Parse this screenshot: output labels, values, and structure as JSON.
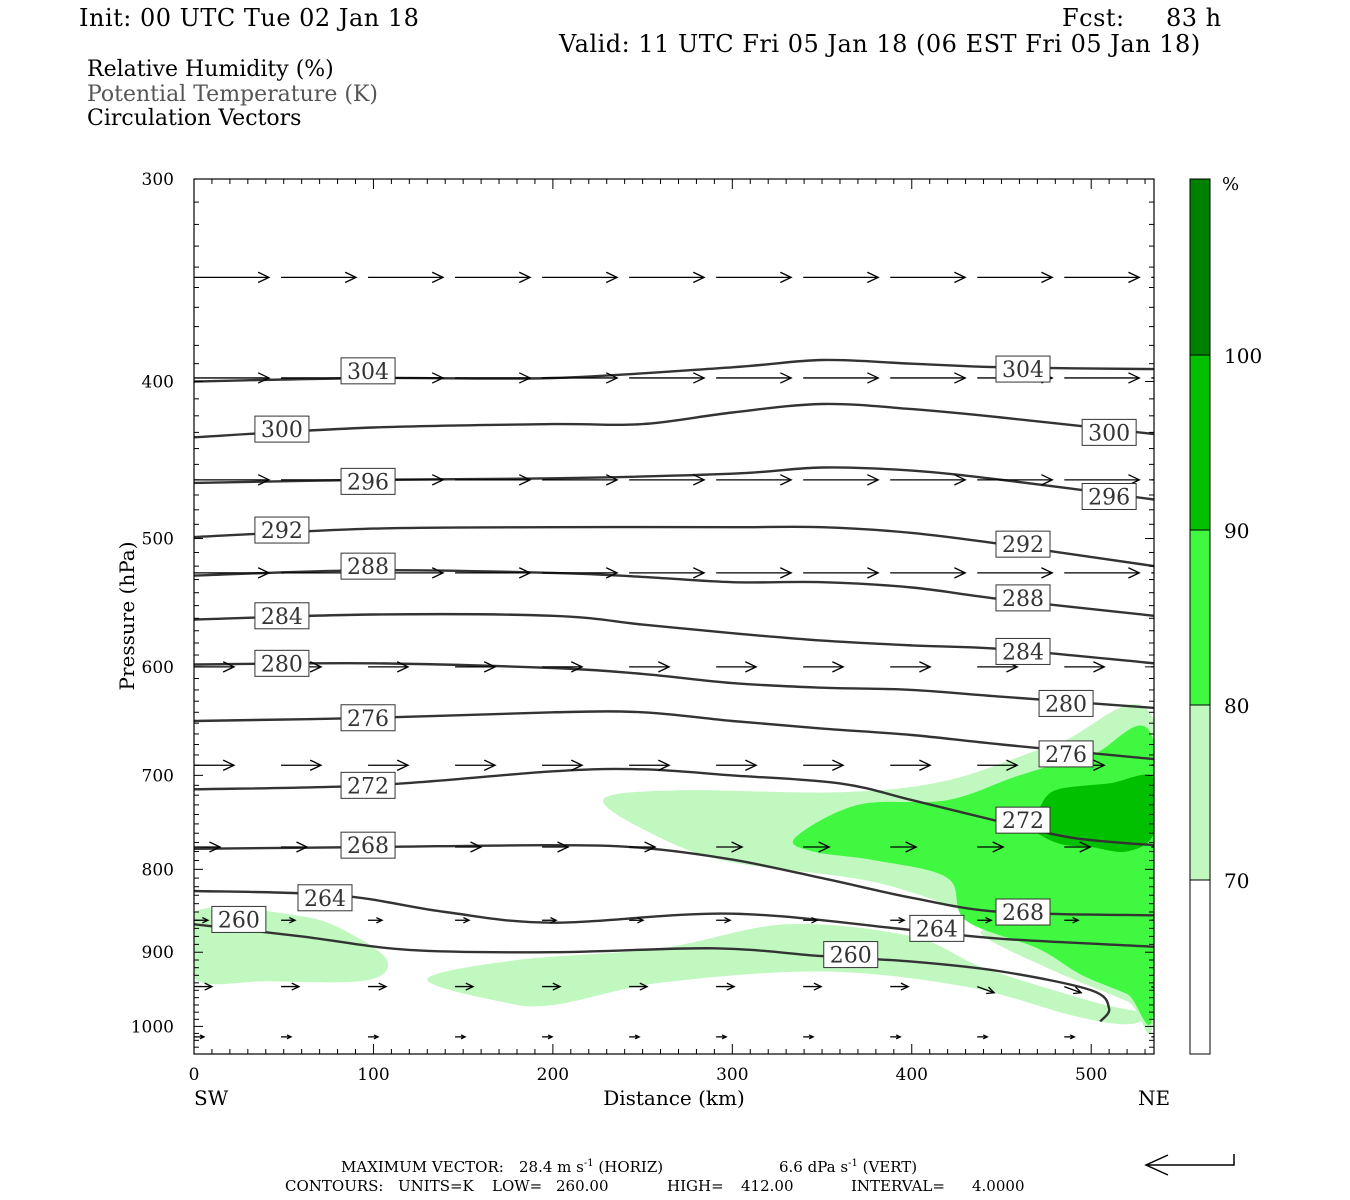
{
  "header": {
    "init": "Init: 00 UTC Tue 02 Jan 18",
    "fcst_label": "Fcst:",
    "fcst_value": "83 h",
    "valid": "Valid: 11 UTC Fri 05 Jan 18 (06 EST Fri 05 Jan 18)"
  },
  "legend": {
    "rh": "Relative Humidity (%)",
    "theta": "Potential Temperature (K)",
    "vectors": "Circulation Vectors"
  },
  "footer": {
    "max_vector_label": "MAXIMUM VECTOR:",
    "max_vector_horiz": "28.4 m s",
    "max_vector_horiz_exp": "-1",
    "max_vector_horiz_tail": "(HORIZ)",
    "max_vector_vert": "6.6 dPa s",
    "max_vector_vert_exp": "-1",
    "max_vector_vert_tail": "(VERT)",
    "contours_label": "CONTOURS:",
    "units": "UNITS=K",
    "low_label": "LOW=",
    "low": "260.00",
    "high_label": "HIGH=",
    "high": "412.00",
    "interval_label": "INTERVAL=",
    "interval": "4.0000"
  },
  "colors": {
    "rh_70": "#c0f8c0",
    "rh_80": "#40f840",
    "rh_90": "#00c000",
    "rh_100": "#008000",
    "contour": "#333333"
  },
  "chart_data": {
    "type": "contour",
    "xlabel": "Distance (km)",
    "ylabel": "Pressure (hPa)",
    "x_ticks": [
      0,
      100,
      200,
      300,
      400,
      500
    ],
    "y_ticks": [
      300,
      400,
      500,
      600,
      700,
      800,
      900,
      1000
    ],
    "xlim": [
      0,
      535
    ],
    "ylim": [
      1040,
      300
    ],
    "y_scale": "log",
    "left_end": "SW",
    "right_end": "NE",
    "colorbar": {
      "unit": "%",
      "levels": [
        70,
        80,
        90,
        100
      ],
      "labels": [
        "70",
        "80",
        "90",
        "100"
      ]
    },
    "theta_contours": [
      {
        "label": "304",
        "points": [
          [
            0,
            400
          ],
          [
            100,
            398
          ],
          [
            200,
            398
          ],
          [
            300,
            392
          ],
          [
            350,
            388
          ],
          [
            400,
            390
          ],
          [
            450,
            392
          ],
          [
            535,
            393
          ]
        ],
        "label_at": [
          [
            97,
            394
          ],
          [
            462,
            393
          ]
        ]
      },
      {
        "label": "300",
        "points": [
          [
            0,
            433
          ],
          [
            100,
            427
          ],
          [
            200,
            425
          ],
          [
            250,
            425
          ],
          [
            300,
            418
          ],
          [
            350,
            413
          ],
          [
            400,
            416
          ],
          [
            450,
            421
          ],
          [
            535,
            431
          ]
        ],
        "label_at": [
          [
            49,
            428
          ],
          [
            510,
            430
          ]
        ]
      },
      {
        "label": "296",
        "points": [
          [
            0,
            462
          ],
          [
            100,
            460
          ],
          [
            200,
            459
          ],
          [
            300,
            456
          ],
          [
            350,
            452
          ],
          [
            400,
            454
          ],
          [
            450,
            460
          ],
          [
            535,
            473
          ]
        ],
        "label_at": [
          [
            97,
            461
          ],
          [
            510,
            471
          ]
        ]
      },
      {
        "label": "292",
        "points": [
          [
            0,
            499
          ],
          [
            100,
            493
          ],
          [
            200,
            492
          ],
          [
            300,
            492
          ],
          [
            350,
            492
          ],
          [
            400,
            496
          ],
          [
            450,
            504
          ],
          [
            535,
            520
          ]
        ],
        "label_at": [
          [
            49,
            494
          ],
          [
            462,
            504
          ]
        ]
      },
      {
        "label": "288",
        "points": [
          [
            0,
            527
          ],
          [
            100,
            523
          ],
          [
            200,
            525
          ],
          [
            250,
            528
          ],
          [
            300,
            532
          ],
          [
            350,
            532
          ],
          [
            400,
            536
          ],
          [
            450,
            545
          ],
          [
            535,
            558
          ]
        ],
        "label_at": [
          [
            97,
            520
          ],
          [
            462,
            544
          ]
        ]
      },
      {
        "label": "284",
        "points": [
          [
            0,
            561
          ],
          [
            100,
            557
          ],
          [
            200,
            558
          ],
          [
            250,
            565
          ],
          [
            300,
            572
          ],
          [
            350,
            578
          ],
          [
            400,
            582
          ],
          [
            450,
            585
          ],
          [
            535,
            597
          ]
        ],
        "label_at": [
          [
            49,
            558
          ],
          [
            462,
            587
          ]
        ]
      },
      {
        "label": "280",
        "points": [
          [
            0,
            598
          ],
          [
            100,
            597
          ],
          [
            200,
            601
          ],
          [
            250,
            606
          ],
          [
            300,
            614
          ],
          [
            350,
            618
          ],
          [
            400,
            620
          ],
          [
            450,
            626
          ],
          [
            535,
            636
          ]
        ],
        "label_at": [
          [
            49,
            597
          ],
          [
            486,
            632
          ]
        ]
      },
      {
        "label": "276",
        "points": [
          [
            0,
            648
          ],
          [
            100,
            645
          ],
          [
            200,
            640
          ],
          [
            250,
            640
          ],
          [
            300,
            648
          ],
          [
            350,
            655
          ],
          [
            400,
            661
          ],
          [
            450,
            670
          ],
          [
            535,
            684
          ]
        ],
        "label_at": [
          [
            97,
            645
          ],
          [
            486,
            679
          ]
        ]
      },
      {
        "label": "272",
        "points": [
          [
            0,
            714
          ],
          [
            100,
            710
          ],
          [
            200,
            696
          ],
          [
            250,
            694
          ],
          [
            300,
            700
          ],
          [
            360,
            708
          ],
          [
            400,
            725
          ],
          [
            450,
            748
          ],
          [
            490,
            765
          ],
          [
            535,
            773
          ]
        ],
        "label_at": [
          [
            97,
            710
          ],
          [
            462,
            746
          ]
        ]
      },
      {
        "label": "268",
        "points": [
          [
            0,
            777
          ],
          [
            100,
            775
          ],
          [
            200,
            773
          ],
          [
            250,
            776
          ],
          [
            300,
            789
          ],
          [
            350,
            810
          ],
          [
            400,
            833
          ],
          [
            450,
            850
          ],
          [
            535,
            854
          ]
        ],
        "label_at": [
          [
            97,
            773
          ],
          [
            462,
            850
          ]
        ]
      },
      {
        "label": "264",
        "points": [
          [
            0,
            825
          ],
          [
            80,
            830
          ],
          [
            140,
            850
          ],
          [
            200,
            863
          ],
          [
            300,
            852
          ],
          [
            400,
            872
          ],
          [
            450,
            883
          ],
          [
            535,
            893
          ]
        ],
        "label_at": [
          [
            73,
            833
          ],
          [
            414,
            870
          ]
        ]
      },
      {
        "label": "260",
        "points": [
          [
            0,
            865
          ],
          [
            60,
            880
          ],
          [
            120,
            897
          ],
          [
            200,
            900
          ],
          [
            290,
            895
          ],
          [
            350,
            905
          ],
          [
            400,
            912
          ],
          [
            450,
            925
          ],
          [
            500,
            950
          ],
          [
            510,
            975
          ],
          [
            505,
            993
          ]
        ],
        "label_at": [
          [
            25,
            859
          ],
          [
            366,
            903
          ]
        ]
      }
    ],
    "rh_regions": [
      {
        "level": 70,
        "outline": [
          [
            0,
            850
          ],
          [
            60,
            855
          ],
          [
            90,
            880
          ],
          [
            108,
            913
          ],
          [
            95,
            937
          ],
          [
            40,
            938
          ],
          [
            0,
            934
          ]
        ]
      },
      {
        "level": 70,
        "outline": [
          [
            130,
            935
          ],
          [
            180,
            910
          ],
          [
            260,
            895
          ],
          [
            330,
            865
          ],
          [
            400,
            880
          ],
          [
            440,
            920
          ],
          [
            500,
            965
          ],
          [
            530,
            983
          ],
          [
            520,
            997
          ],
          [
            490,
            985
          ],
          [
            430,
            945
          ],
          [
            350,
            925
          ],
          [
            260,
            940
          ],
          [
            200,
            970
          ],
          [
            170,
            965
          ]
        ]
      },
      {
        "level": 70,
        "outline": [
          [
            228,
            725
          ],
          [
            270,
            715
          ],
          [
            360,
            717
          ],
          [
            420,
            705
          ],
          [
            480,
            670
          ],
          [
            535,
            648
          ],
          [
            535,
            985
          ],
          [
            520,
            965
          ],
          [
            480,
            925
          ],
          [
            440,
            880
          ],
          [
            440,
            860
          ],
          [
            380,
            815
          ],
          [
            300,
            792
          ],
          [
            260,
            765
          ]
        ]
      },
      {
        "level": 80,
        "outline": [
          [
            335,
            765
          ],
          [
            370,
            730
          ],
          [
            420,
            725
          ],
          [
            460,
            700
          ],
          [
            500,
            680
          ],
          [
            535,
            668
          ],
          [
            535,
            975
          ],
          [
            520,
            955
          ],
          [
            495,
            930
          ],
          [
            470,
            895
          ],
          [
            430,
            860
          ],
          [
            420,
            810
          ],
          [
            380,
            790
          ],
          [
            345,
            780
          ]
        ]
      },
      {
        "level": 90,
        "outline": [
          [
            460,
            745
          ],
          [
            470,
            735
          ],
          [
            480,
            715
          ],
          [
            510,
            708
          ],
          [
            535,
            702
          ],
          [
            535,
            760
          ],
          [
            520,
            780
          ],
          [
            500,
            775
          ],
          [
            480,
            770
          ]
        ]
      }
    ],
    "vector_rows_hPa": [
      345,
      398,
      460,
      525,
      600,
      690,
      775,
      860,
      945,
      1015
    ],
    "max_vector_horiz": 28.4,
    "max_vector_vert": 6.6
  }
}
